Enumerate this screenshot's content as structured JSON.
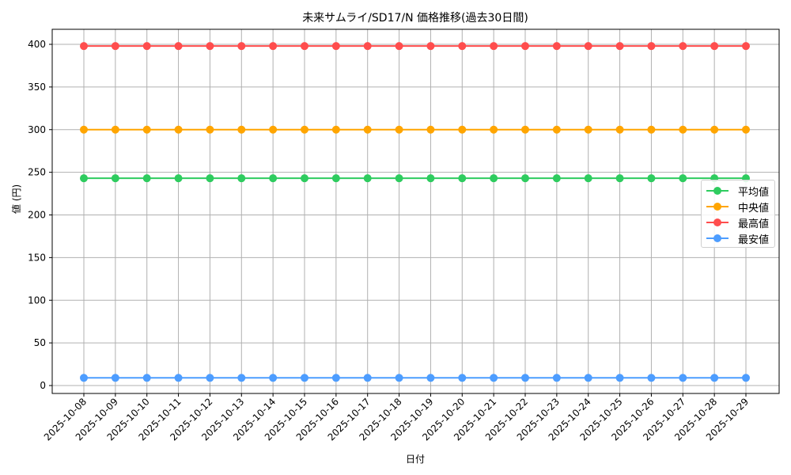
{
  "chart_data": {
    "type": "line",
    "title": "未来サムライ/SD17/N 価格推移(過去30日間)",
    "xlabel": "日付",
    "ylabel": "値 (円)",
    "ylim": [
      -10,
      420
    ],
    "yticks": [
      0,
      50,
      100,
      150,
      200,
      250,
      300,
      350,
      400
    ],
    "grid": true,
    "legend_position": "center right",
    "categories": [
      "2025-10-08",
      "2025-10-09",
      "2025-10-10",
      "2025-10-11",
      "2025-10-12",
      "2025-10-13",
      "2025-10-14",
      "2025-10-15",
      "2025-10-16",
      "2025-10-17",
      "2025-10-18",
      "2025-10-19",
      "2025-10-20",
      "2025-10-21",
      "2025-10-22",
      "2025-10-23",
      "2025-10-24",
      "2025-10-25",
      "2025-10-26",
      "2025-10-27",
      "2025-10-28",
      "2025-10-29"
    ],
    "series": [
      {
        "name": "平均値",
        "color": "#2ecc5f",
        "values": [
          243,
          243,
          243,
          243,
          243,
          243,
          243,
          243,
          243,
          243,
          243,
          243,
          243,
          243,
          243,
          243,
          243,
          243,
          243,
          243,
          243,
          243
        ]
      },
      {
        "name": "中央値",
        "color": "#ffa500",
        "values": [
          300,
          300,
          300,
          300,
          300,
          300,
          300,
          300,
          300,
          300,
          300,
          300,
          300,
          300,
          300,
          300,
          300,
          300,
          300,
          300,
          300,
          300
        ]
      },
      {
        "name": "最高値",
        "color": "#ff4d4d",
        "values": [
          398,
          398,
          398,
          398,
          398,
          398,
          398,
          398,
          398,
          398,
          398,
          398,
          398,
          398,
          398,
          398,
          398,
          398,
          398,
          398,
          398,
          398
        ]
      },
      {
        "name": "最安値",
        "color": "#4d9dff",
        "values": [
          9,
          9,
          9,
          9,
          9,
          9,
          9,
          9,
          9,
          9,
          9,
          9,
          9,
          9,
          9,
          9,
          9,
          9,
          9,
          9,
          9,
          9
        ]
      }
    ]
  }
}
